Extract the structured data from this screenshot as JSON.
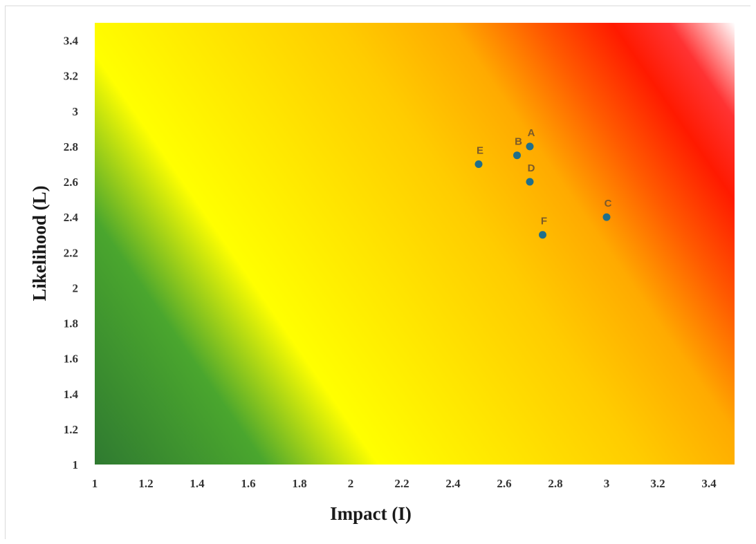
{
  "chart_data": {
    "type": "scatter",
    "title": "",
    "xlabel": "Impact (I)",
    "ylabel": "Likelihood (L)",
    "xlim": [
      1,
      3.5
    ],
    "ylim": [
      1,
      3.5
    ],
    "xticks": [
      "1",
      "1.2",
      "1.4",
      "1.6",
      "1.8",
      "2",
      "2.2",
      "2.4",
      "2.6",
      "2.8",
      "3",
      "3.2",
      "3.4"
    ],
    "yticks": [
      "1",
      "1.2",
      "1.4",
      "1.6",
      "1.8",
      "2",
      "2.2",
      "2.4",
      "2.6",
      "2.8",
      "3",
      "3.2",
      "3.4"
    ],
    "grid": false,
    "background": "risk heatmap gradient: green (low impact/likelihood) → yellow → orange → red → white (high)",
    "marker_color": "#1f6f8b",
    "label_color": "#7a5a2a",
    "points": [
      {
        "label": "A",
        "x": 2.7,
        "y": 2.8
      },
      {
        "label": "B",
        "x": 2.65,
        "y": 2.75
      },
      {
        "label": "C",
        "x": 3.0,
        "y": 2.4
      },
      {
        "label": "D",
        "x": 2.7,
        "y": 2.6
      },
      {
        "label": "E",
        "x": 2.5,
        "y": 2.7
      },
      {
        "label": "F",
        "x": 2.75,
        "y": 2.3
      }
    ]
  }
}
